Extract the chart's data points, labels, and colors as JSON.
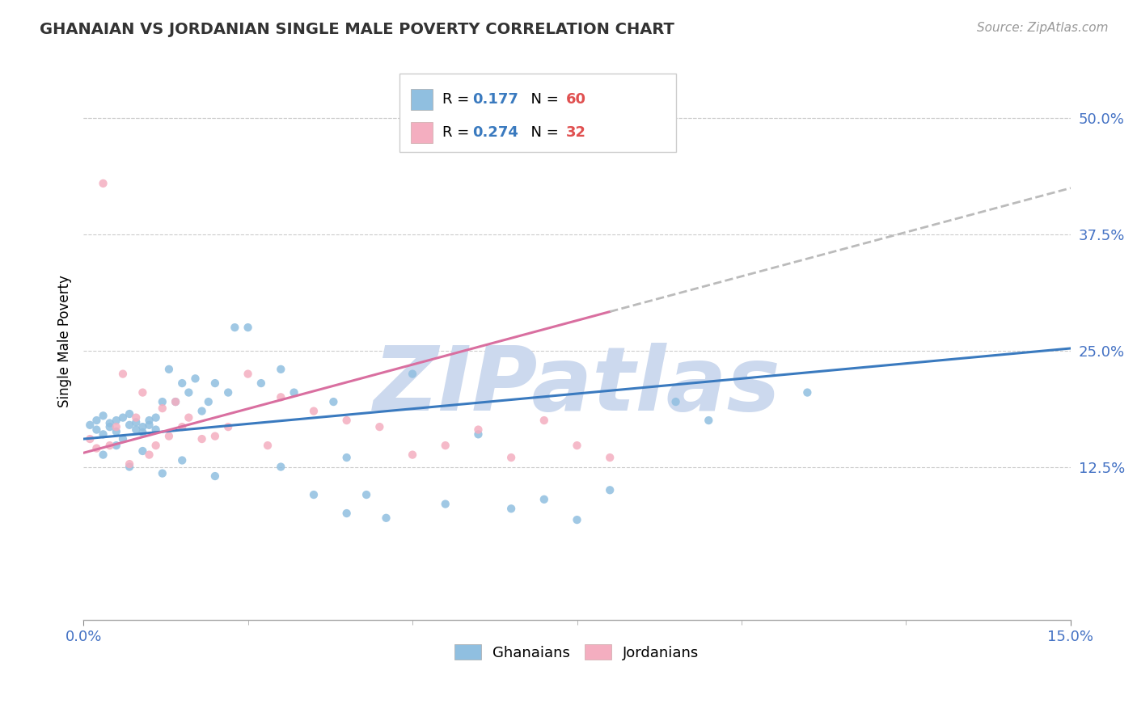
{
  "title": "GHANAIAN VS JORDANIAN SINGLE MALE POVERTY CORRELATION CHART",
  "source": "Source: ZipAtlas.com",
  "ylabel": "Single Male Poverty",
  "xlim": [
    0.0,
    0.15
  ],
  "ylim": [
    -0.04,
    0.56
  ],
  "ytick_positions": [
    0.125,
    0.25,
    0.375,
    0.5
  ],
  "ytick_labels": [
    "12.5%",
    "25.0%",
    "37.5%",
    "50.0%"
  ],
  "ghanaian_R": 0.177,
  "ghanaian_N": 60,
  "jordanian_R": 0.274,
  "jordanian_N": 32,
  "blue_color": "#90bfe0",
  "pink_color": "#f4aec0",
  "blue_line_color": "#3a7abf",
  "pink_line_color": "#d96fa0",
  "gray_dash_color": "#bbbbbb",
  "watermark_text": "ZIPatlas",
  "watermark_color": "#ccd9ee",
  "legend_R_color": "#3a7abf",
  "legend_N_color": "#e05050",
  "ghanaians_x": [
    0.001,
    0.002,
    0.002,
    0.003,
    0.003,
    0.004,
    0.004,
    0.005,
    0.005,
    0.006,
    0.006,
    0.007,
    0.007,
    0.008,
    0.008,
    0.009,
    0.009,
    0.01,
    0.01,
    0.011,
    0.011,
    0.012,
    0.013,
    0.014,
    0.015,
    0.016,
    0.017,
    0.018,
    0.019,
    0.02,
    0.022,
    0.023,
    0.025,
    0.027,
    0.03,
    0.032,
    0.035,
    0.038,
    0.04,
    0.043,
    0.046,
    0.05,
    0.055,
    0.06,
    0.065,
    0.07,
    0.075,
    0.08,
    0.09,
    0.095,
    0.003,
    0.005,
    0.007,
    0.009,
    0.012,
    0.015,
    0.02,
    0.03,
    0.04,
    0.11
  ],
  "ghanaians_y": [
    0.17,
    0.165,
    0.175,
    0.16,
    0.18,
    0.172,
    0.168,
    0.175,
    0.163,
    0.178,
    0.155,
    0.182,
    0.17,
    0.165,
    0.173,
    0.168,
    0.162,
    0.175,
    0.17,
    0.165,
    0.178,
    0.195,
    0.23,
    0.195,
    0.215,
    0.205,
    0.22,
    0.185,
    0.195,
    0.215,
    0.205,
    0.275,
    0.275,
    0.215,
    0.23,
    0.205,
    0.095,
    0.195,
    0.075,
    0.095,
    0.07,
    0.225,
    0.085,
    0.16,
    0.08,
    0.09,
    0.068,
    0.1,
    0.195,
    0.175,
    0.138,
    0.148,
    0.125,
    0.142,
    0.118,
    0.132,
    0.115,
    0.125,
    0.135,
    0.205
  ],
  "jordanians_x": [
    0.001,
    0.002,
    0.003,
    0.004,
    0.005,
    0.006,
    0.007,
    0.008,
    0.009,
    0.01,
    0.011,
    0.012,
    0.013,
    0.014,
    0.015,
    0.016,
    0.018,
    0.02,
    0.022,
    0.025,
    0.028,
    0.03,
    0.035,
    0.04,
    0.045,
    0.05,
    0.055,
    0.06,
    0.065,
    0.07,
    0.075,
    0.08
  ],
  "jordanians_y": [
    0.155,
    0.145,
    0.43,
    0.148,
    0.168,
    0.225,
    0.128,
    0.178,
    0.205,
    0.138,
    0.148,
    0.188,
    0.158,
    0.195,
    0.168,
    0.178,
    0.155,
    0.158,
    0.168,
    0.225,
    0.148,
    0.2,
    0.185,
    0.175,
    0.168,
    0.138,
    0.148,
    0.165,
    0.135,
    0.175,
    0.148,
    0.135
  ],
  "blue_intercept": 0.155,
  "blue_slope": 0.65,
  "pink_intercept": 0.14,
  "pink_slope": 1.9
}
